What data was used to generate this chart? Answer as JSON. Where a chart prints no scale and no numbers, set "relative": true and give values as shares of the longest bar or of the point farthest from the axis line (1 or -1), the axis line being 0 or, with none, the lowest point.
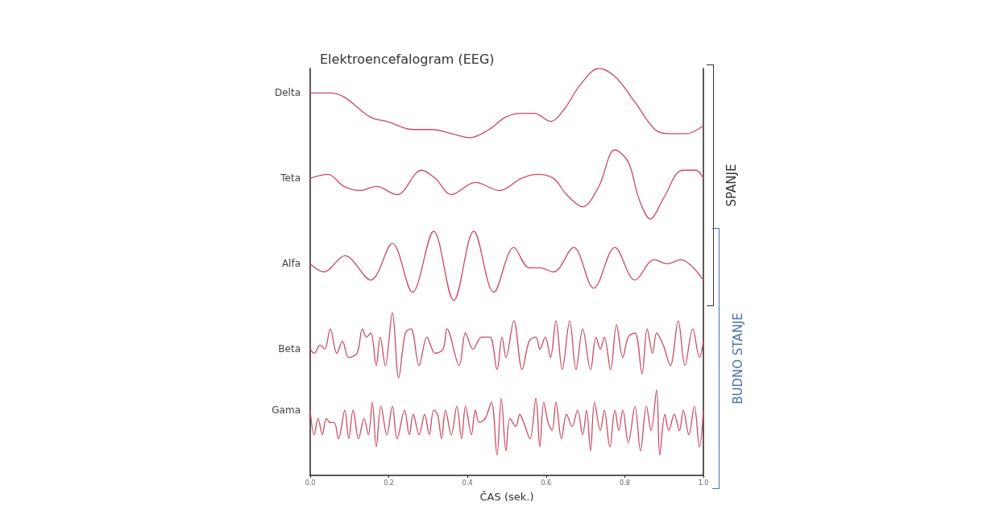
{
  "chart_data": {
    "type": "line",
    "title": "Elektroencefalogram (EEG)",
    "xlabel": "ČAS (sek.)",
    "relative": true,
    "xlim": [
      0,
      1
    ],
    "xticks": [
      {
        "value": 0,
        "label": "0.0"
      },
      0.2,
      0.4,
      0.6,
      0.8,
      {
        "value": 1,
        "label": "1.0"
      }
    ],
    "tick_labels": "x",
    "marker": "none",
    "line_style": "solid",
    "annotations": [
      "SPANJE",
      "BUDNO STANJE"
    ],
    "series": [
      {
        "name": "Delta",
        "color": "#cc4a63",
        "x": [
          0,
          0.051,
          0.086,
          0.154,
          0.195,
          0.262,
          0.311,
          0.359,
          0.406,
          0.455,
          0.496,
          0.537,
          0.57,
          0.611,
          0.646,
          0.687,
          0.734,
          0.775,
          0.824,
          0.877,
          0.912,
          0.959,
          1
        ],
        "values": [
          0.94,
          0.94,
          0.93,
          0.88,
          0.87,
          0.85,
          0.85,
          0.84,
          0.83,
          0.85,
          0.88,
          0.89,
          0.89,
          0.87,
          0.9,
          0.96,
          1,
          0.98,
          0.92,
          0.85,
          0.84,
          0.84,
          0.86
        ]
      },
      {
        "name": "Teta",
        "color": "#cc4a63",
        "x": [
          0,
          0.045,
          0.086,
          0.127,
          0.168,
          0.221,
          0.283,
          0.318,
          0.359,
          0.42,
          0.482,
          0.537,
          0.578,
          0.619,
          0.652,
          0.693,
          0.734,
          0.775,
          0.809,
          0.836,
          0.865,
          0.898,
          0.947,
          0.98,
          1
        ],
        "values": [
          0.73,
          0.74,
          0.71,
          0.7,
          0.71,
          0.69,
          0.75,
          0.73,
          0.69,
          0.72,
          0.7,
          0.73,
          0.74,
          0.73,
          0.69,
          0.66,
          0.71,
          0.8,
          0.77,
          0.68,
          0.63,
          0.68,
          0.75,
          0.75,
          0.73
        ]
      },
      {
        "name": "Alfa",
        "color": "#cc4a63",
        "x": [
          0,
          0.035,
          0.088,
          0.154,
          0.209,
          0.26,
          0.314,
          0.365,
          0.416,
          0.467,
          0.518,
          0.557,
          0.584,
          0.619,
          0.67,
          0.721,
          0.775,
          0.826,
          0.875,
          0.908,
          0.943,
          1
        ],
        "values": [
          0.52,
          0.5,
          0.54,
          0.48,
          0.57,
          0.45,
          0.6,
          0.43,
          0.6,
          0.45,
          0.56,
          0.51,
          0.51,
          0.5,
          0.56,
          0.46,
          0.56,
          0.48,
          0.53,
          0.52,
          0.53,
          0.48
        ]
      },
      {
        "name": "Beta",
        "color": "#cc4a63",
        "x": [
          0,
          0.01,
          0.025,
          0.037,
          0.051,
          0.068,
          0.082,
          0.098,
          0.119,
          0.133,
          0.143,
          0.154,
          0.168,
          0.178,
          0.191,
          0.209,
          0.225,
          0.242,
          0.256,
          0.277,
          0.297,
          0.318,
          0.338,
          0.348,
          0.379,
          0.395,
          0.414,
          0.436,
          0.457,
          0.475,
          0.488,
          0.498,
          0.518,
          0.539,
          0.557,
          0.574,
          0.584,
          0.598,
          0.611,
          0.625,
          0.641,
          0.66,
          0.676,
          0.693,
          0.713,
          0.727,
          0.738,
          0.748,
          0.764,
          0.779,
          0.795,
          0.809,
          0.826,
          0.844,
          0.857,
          0.871,
          0.881,
          0.898,
          0.916,
          0.936,
          0.953,
          0.973,
          0.99,
          1
        ],
        "values": [
          0.31,
          0.3,
          0.32,
          0.31,
          0.36,
          0.3,
          0.33,
          0.29,
          0.3,
          0.36,
          0.34,
          0.35,
          0.27,
          0.34,
          0.27,
          0.4,
          0.24,
          0.35,
          0.36,
          0.27,
          0.34,
          0.3,
          0.31,
          0.36,
          0.27,
          0.35,
          0.31,
          0.34,
          0.34,
          0.26,
          0.34,
          0.29,
          0.38,
          0.26,
          0.33,
          0.34,
          0.31,
          0.34,
          0.29,
          0.38,
          0.26,
          0.38,
          0.26,
          0.36,
          0.26,
          0.34,
          0.31,
          0.34,
          0.26,
          0.37,
          0.29,
          0.34,
          0.35,
          0.25,
          0.36,
          0.3,
          0.35,
          0.32,
          0.27,
          0.38,
          0.27,
          0.36,
          0.29,
          0.33
        ]
      },
      {
        "name": "Gama",
        "color": "#cc4a63",
        "x": [
          0,
          0.01,
          0.02,
          0.031,
          0.041,
          0.051,
          0.061,
          0.072,
          0.088,
          0.098,
          0.109,
          0.123,
          0.137,
          0.148,
          0.158,
          0.168,
          0.18,
          0.195,
          0.209,
          0.221,
          0.24,
          0.252,
          0.262,
          0.277,
          0.291,
          0.303,
          0.314,
          0.324,
          0.334,
          0.344,
          0.359,
          0.373,
          0.385,
          0.395,
          0.41,
          0.42,
          0.43,
          0.445,
          0.461,
          0.475,
          0.486,
          0.498,
          0.508,
          0.523,
          0.533,
          0.543,
          0.559,
          0.574,
          0.584,
          0.594,
          0.605,
          0.615,
          0.625,
          0.639,
          0.652,
          0.666,
          0.68,
          0.693,
          0.703,
          0.713,
          0.723,
          0.738,
          0.748,
          0.762,
          0.775,
          0.785,
          0.795,
          0.809,
          0.826,
          0.84,
          0.855,
          0.867,
          0.881,
          0.889,
          0.902,
          0.912,
          0.926,
          0.939,
          0.949,
          0.963,
          0.977,
          0.99,
          1
        ],
        "values": [
          0.16,
          0.1,
          0.14,
          0.1,
          0.14,
          0.13,
          0.13,
          0.09,
          0.16,
          0.09,
          0.16,
          0.09,
          0.14,
          0.1,
          0.18,
          0.07,
          0.17,
          0.1,
          0.17,
          0.09,
          0.16,
          0.1,
          0.15,
          0.1,
          0.15,
          0.1,
          0.16,
          0.15,
          0.09,
          0.16,
          0.1,
          0.17,
          0.09,
          0.17,
          0.1,
          0.16,
          0.13,
          0.14,
          0.18,
          0.05,
          0.19,
          0.06,
          0.14,
          0.12,
          0.15,
          0.13,
          0.09,
          0.19,
          0.07,
          0.18,
          0.13,
          0.11,
          0.18,
          0.09,
          0.15,
          0.12,
          0.16,
          0.1,
          0.16,
          0.06,
          0.18,
          0.11,
          0.16,
          0.07,
          0.16,
          0.11,
          0.16,
          0.08,
          0.17,
          0.06,
          0.17,
          0.11,
          0.21,
          0.05,
          0.15,
          0.11,
          0.15,
          0.11,
          0.16,
          0.1,
          0.17,
          0.07,
          0.16
        ]
      }
    ]
  }
}
